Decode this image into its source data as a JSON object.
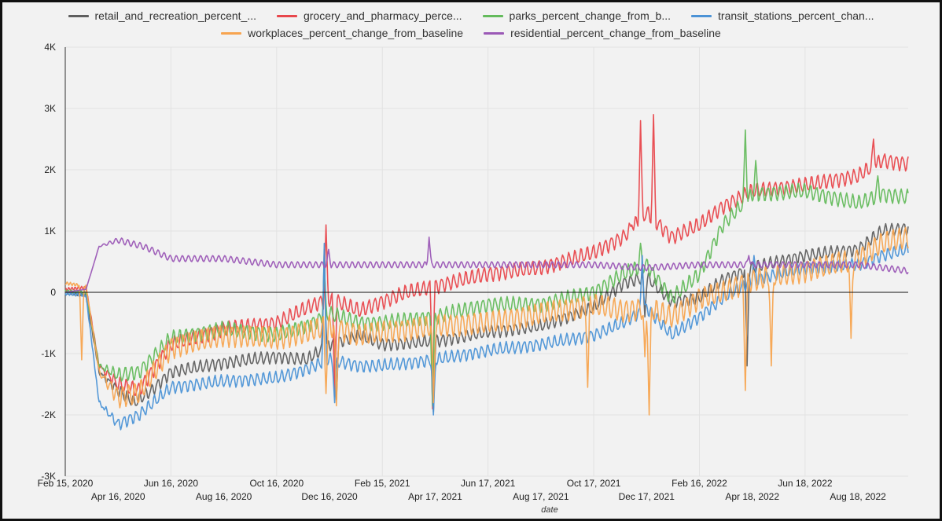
{
  "chart_data": {
    "type": "line",
    "xlabel": "date",
    "ylabel": "",
    "ylim": [
      -3000,
      4000
    ],
    "grid": true,
    "legend_position": "top",
    "y_ticks": [
      {
        "value": 4000,
        "label": "4K"
      },
      {
        "value": 3000,
        "label": "3K"
      },
      {
        "value": 2000,
        "label": "2K"
      },
      {
        "value": 1000,
        "label": "1K"
      },
      {
        "value": 0,
        "label": "0"
      },
      {
        "value": -1000,
        "label": "-1K"
      },
      {
        "value": -2000,
        "label": "-2K"
      },
      {
        "value": -3000,
        "label": "-3K"
      }
    ],
    "x_ticks": [
      {
        "date": "2020-02-15",
        "label": "Feb 15, 2020",
        "row": 1
      },
      {
        "date": "2020-04-16",
        "label": "Apr 16, 2020",
        "row": 2
      },
      {
        "date": "2020-06-16",
        "label": "Jun 16, 2020",
        "row": 1
      },
      {
        "date": "2020-08-16",
        "label": "Aug 16, 2020",
        "row": 2
      },
      {
        "date": "2020-10-16",
        "label": "Oct 16, 2020",
        "row": 1
      },
      {
        "date": "2020-12-16",
        "label": "Dec 16, 2020",
        "row": 2
      },
      {
        "date": "2021-02-15",
        "label": "Feb 15, 2021",
        "row": 1
      },
      {
        "date": "2021-04-17",
        "label": "Apr 17, 2021",
        "row": 2
      },
      {
        "date": "2021-06-17",
        "label": "Jun 17, 2021",
        "row": 1
      },
      {
        "date": "2021-08-17",
        "label": "Aug 17, 2021",
        "row": 2
      },
      {
        "date": "2021-10-17",
        "label": "Oct 17, 2021",
        "row": 1
      },
      {
        "date": "2021-12-17",
        "label": "Dec 17, 2021",
        "row": 2
      },
      {
        "date": "2022-02-16",
        "label": "Feb 16, 2022",
        "row": 1
      },
      {
        "date": "2022-04-18",
        "label": "Apr 18, 2022",
        "row": 2
      },
      {
        "date": "2022-06-18",
        "label": "Jun 18, 2022",
        "row": 1
      },
      {
        "date": "2022-08-18",
        "label": "Aug 18, 2022",
        "row": 2
      }
    ],
    "x_range": [
      "2020-02-15",
      "2022-10-15"
    ],
    "series": [
      {
        "name": "retail_and_recreation_percent_...",
        "color": "#5f5f5f",
        "points": [
          [
            "2020-02-15",
            0
          ],
          [
            "2020-03-10",
            -50
          ],
          [
            "2020-03-25",
            -1300
          ],
          [
            "2020-04-16",
            -1600
          ],
          [
            "2020-05-05",
            -1800
          ],
          [
            "2020-05-25",
            -1600
          ],
          [
            "2020-06-16",
            -1300
          ],
          [
            "2020-08-16",
            -1150
          ],
          [
            "2020-10-16",
            -1050
          ],
          [
            "2020-11-20",
            -1100
          ],
          [
            "2020-12-16",
            -850
          ],
          [
            "2021-01-20",
            -700
          ],
          [
            "2021-02-15",
            -850
          ],
          [
            "2021-04-17",
            -800
          ],
          [
            "2021-06-17",
            -650
          ],
          [
            "2021-08-17",
            -550
          ],
          [
            "2021-10-17",
            -250
          ],
          [
            "2021-11-20",
            150
          ],
          [
            "2021-12-17",
            250
          ],
          [
            "2022-01-15",
            -150
          ],
          [
            "2022-02-16",
            -100
          ],
          [
            "2022-03-15",
            200
          ],
          [
            "2022-04-18",
            400
          ],
          [
            "2022-06-18",
            600
          ],
          [
            "2022-08-18",
            700
          ],
          [
            "2022-09-15",
            1000
          ],
          [
            "2022-10-15",
            1050
          ]
        ]
      },
      {
        "name": "grocery_and_pharmacy_perce...",
        "color": "#e8474c",
        "points": [
          [
            "2020-02-15",
            50
          ],
          [
            "2020-03-10",
            80
          ],
          [
            "2020-03-25",
            -1200
          ],
          [
            "2020-04-16",
            -1500
          ],
          [
            "2020-05-10",
            -1600
          ],
          [
            "2020-06-16",
            -850
          ],
          [
            "2020-08-16",
            -600
          ],
          [
            "2020-10-16",
            -500
          ],
          [
            "2020-11-20",
            -250
          ],
          [
            "2020-12-16",
            -100
          ],
          [
            "2021-01-20",
            -300
          ],
          [
            "2021-02-15",
            -150
          ],
          [
            "2021-03-15",
            0
          ],
          [
            "2021-04-17",
            100
          ],
          [
            "2021-06-17",
            300
          ],
          [
            "2021-08-17",
            400
          ],
          [
            "2021-10-17",
            650
          ],
          [
            "2021-11-20",
            900
          ],
          [
            "2021-12-17",
            1300
          ],
          [
            "2022-01-15",
            900
          ],
          [
            "2022-02-16",
            1100
          ],
          [
            "2022-03-15",
            1400
          ],
          [
            "2022-04-18",
            1650
          ],
          [
            "2022-06-18",
            1750
          ],
          [
            "2022-08-18",
            1900
          ],
          [
            "2022-09-15",
            2150
          ],
          [
            "2022-10-15",
            2100
          ]
        ]
      },
      {
        "name": "parks_percent_change_from_b...",
        "color": "#64bb5c",
        "points": [
          [
            "2020-02-15",
            20
          ],
          [
            "2020-03-10",
            0
          ],
          [
            "2020-03-25",
            -1200
          ],
          [
            "2020-04-16",
            -1350
          ],
          [
            "2020-05-10",
            -1300
          ],
          [
            "2020-06-16",
            -750
          ],
          [
            "2020-08-16",
            -600
          ],
          [
            "2020-10-16",
            -700
          ],
          [
            "2020-11-20",
            -550
          ],
          [
            "2020-12-16",
            -350
          ],
          [
            "2021-01-20",
            -500
          ],
          [
            "2021-02-15",
            -500
          ],
          [
            "2021-04-17",
            -400
          ],
          [
            "2021-06-17",
            -200
          ],
          [
            "2021-08-17",
            -200
          ],
          [
            "2021-10-17",
            0
          ],
          [
            "2021-11-20",
            300
          ],
          [
            "2021-12-17",
            450
          ],
          [
            "2022-01-15",
            -100
          ],
          [
            "2022-02-16",
            300
          ],
          [
            "2022-03-15",
            1100
          ],
          [
            "2022-04-18",
            1600
          ],
          [
            "2022-06-18",
            1650
          ],
          [
            "2022-08-18",
            1450
          ],
          [
            "2022-09-15",
            1600
          ],
          [
            "2022-10-15",
            1550
          ]
        ]
      },
      {
        "name": "transit_stations_percent_chan...",
        "color": "#4c93d6",
        "points": [
          [
            "2020-02-15",
            -20
          ],
          [
            "2020-03-10",
            -50
          ],
          [
            "2020-03-25",
            -1800
          ],
          [
            "2020-04-16",
            -2150
          ],
          [
            "2020-05-10",
            -2000
          ],
          [
            "2020-06-16",
            -1550
          ],
          [
            "2020-08-16",
            -1450
          ],
          [
            "2020-10-16",
            -1400
          ],
          [
            "2020-11-20",
            -1250
          ],
          [
            "2020-12-16",
            -1100
          ],
          [
            "2021-01-20",
            -1200
          ],
          [
            "2021-02-15",
            -1200
          ],
          [
            "2021-04-17",
            -1100
          ],
          [
            "2021-06-17",
            -950
          ],
          [
            "2021-08-17",
            -850
          ],
          [
            "2021-10-17",
            -700
          ],
          [
            "2021-11-20",
            -500
          ],
          [
            "2021-12-17",
            -250
          ],
          [
            "2022-01-15",
            -700
          ],
          [
            "2022-02-16",
            -400
          ],
          [
            "2022-03-15",
            -100
          ],
          [
            "2022-04-18",
            200
          ],
          [
            "2022-06-18",
            400
          ],
          [
            "2022-08-18",
            450
          ],
          [
            "2022-09-15",
            600
          ],
          [
            "2022-10-15",
            700
          ]
        ]
      },
      {
        "name": "workplaces_percent_change_from_baseline",
        "color": "#f7a44f",
        "points": [
          [
            "2020-02-15",
            150
          ],
          [
            "2020-03-10",
            100
          ],
          [
            "2020-03-25",
            -1300
          ],
          [
            "2020-04-16",
            -1700
          ],
          [
            "2020-05-10",
            -1650
          ],
          [
            "2020-06-16",
            -900
          ],
          [
            "2020-08-16",
            -700
          ],
          [
            "2020-10-16",
            -750
          ],
          [
            "2020-11-20",
            -650
          ],
          [
            "2020-12-16",
            -550
          ],
          [
            "2021-01-20",
            -700
          ],
          [
            "2021-02-15",
            -650
          ],
          [
            "2021-04-17",
            -550
          ],
          [
            "2021-06-17",
            -500
          ],
          [
            "2021-08-17",
            -350
          ],
          [
            "2021-10-17",
            -200
          ],
          [
            "2021-11-20",
            -300
          ],
          [
            "2021-12-17",
            -250
          ],
          [
            "2022-01-15",
            -400
          ],
          [
            "2022-02-16",
            -100
          ],
          [
            "2022-03-15",
            0
          ],
          [
            "2022-04-18",
            200
          ],
          [
            "2022-06-18",
            350
          ],
          [
            "2022-08-18",
            550
          ],
          [
            "2022-09-15",
            800
          ],
          [
            "2022-10-15",
            900
          ]
        ]
      },
      {
        "name": "residential_percent_change_from_baseline",
        "color": "#9b59b6",
        "points": [
          [
            "2020-02-15",
            0
          ],
          [
            "2020-03-10",
            50
          ],
          [
            "2020-03-25",
            750
          ],
          [
            "2020-04-16",
            850
          ],
          [
            "2020-05-15",
            750
          ],
          [
            "2020-06-16",
            550
          ],
          [
            "2020-08-16",
            550
          ],
          [
            "2020-10-16",
            450
          ],
          [
            "2020-12-16",
            450
          ],
          [
            "2021-02-15",
            450
          ],
          [
            "2021-04-17",
            450
          ],
          [
            "2021-06-17",
            450
          ],
          [
            "2021-08-17",
            450
          ],
          [
            "2021-10-17",
            450
          ],
          [
            "2021-12-17",
            400
          ],
          [
            "2022-02-16",
            450
          ],
          [
            "2022-04-18",
            450
          ],
          [
            "2022-06-18",
            450
          ],
          [
            "2022-08-18",
            450
          ],
          [
            "2022-10-15",
            350
          ]
        ]
      }
    ],
    "spikes": [
      {
        "series": 0,
        "points": [
          [
            "2020-12-10",
            700
          ],
          [
            "2020-12-24",
            -1750
          ],
          [
            "2021-04-15",
            -1950
          ],
          [
            "2021-12-15",
            -400
          ],
          [
            "2022-04-12",
            -1200
          ]
        ]
      },
      {
        "series": 1,
        "points": [
          [
            "2020-12-12",
            1100
          ],
          [
            "2020-12-22",
            -1700
          ],
          [
            "2021-04-14",
            -1900
          ],
          [
            "2021-11-30",
            1100
          ],
          [
            "2021-12-10",
            2800
          ],
          [
            "2021-12-25",
            2900
          ],
          [
            "2022-09-05",
            2500
          ]
        ]
      },
      {
        "series": 2,
        "points": [
          [
            "2020-12-10",
            400
          ],
          [
            "2021-04-14",
            -1850
          ],
          [
            "2021-12-10",
            800
          ],
          [
            "2022-04-10",
            2650
          ],
          [
            "2022-04-22",
            2150
          ],
          [
            "2022-09-10",
            1900
          ]
        ]
      },
      {
        "series": 3,
        "points": [
          [
            "2020-12-10",
            800
          ],
          [
            "2020-12-22",
            -1800
          ],
          [
            "2021-04-15",
            -2000
          ],
          [
            "2021-12-12",
            600
          ],
          [
            "2022-04-20",
            600
          ]
        ]
      },
      {
        "series": 4,
        "points": [
          [
            "2020-03-05",
            -1100
          ],
          [
            "2020-12-12",
            -1650
          ],
          [
            "2020-12-24",
            -1850
          ],
          [
            "2021-04-15",
            -1800
          ],
          [
            "2021-10-10",
            -1550
          ],
          [
            "2021-12-15",
            -1050
          ],
          [
            "2021-12-20",
            -2000
          ],
          [
            "2022-04-10",
            -1600
          ],
          [
            "2022-05-10",
            -1200
          ],
          [
            "2022-08-10",
            -750
          ]
        ]
      },
      {
        "series": 5,
        "points": [
          [
            "2020-12-15",
            700
          ],
          [
            "2021-04-10",
            900
          ],
          [
            "2022-04-14",
            600
          ]
        ]
      }
    ]
  }
}
